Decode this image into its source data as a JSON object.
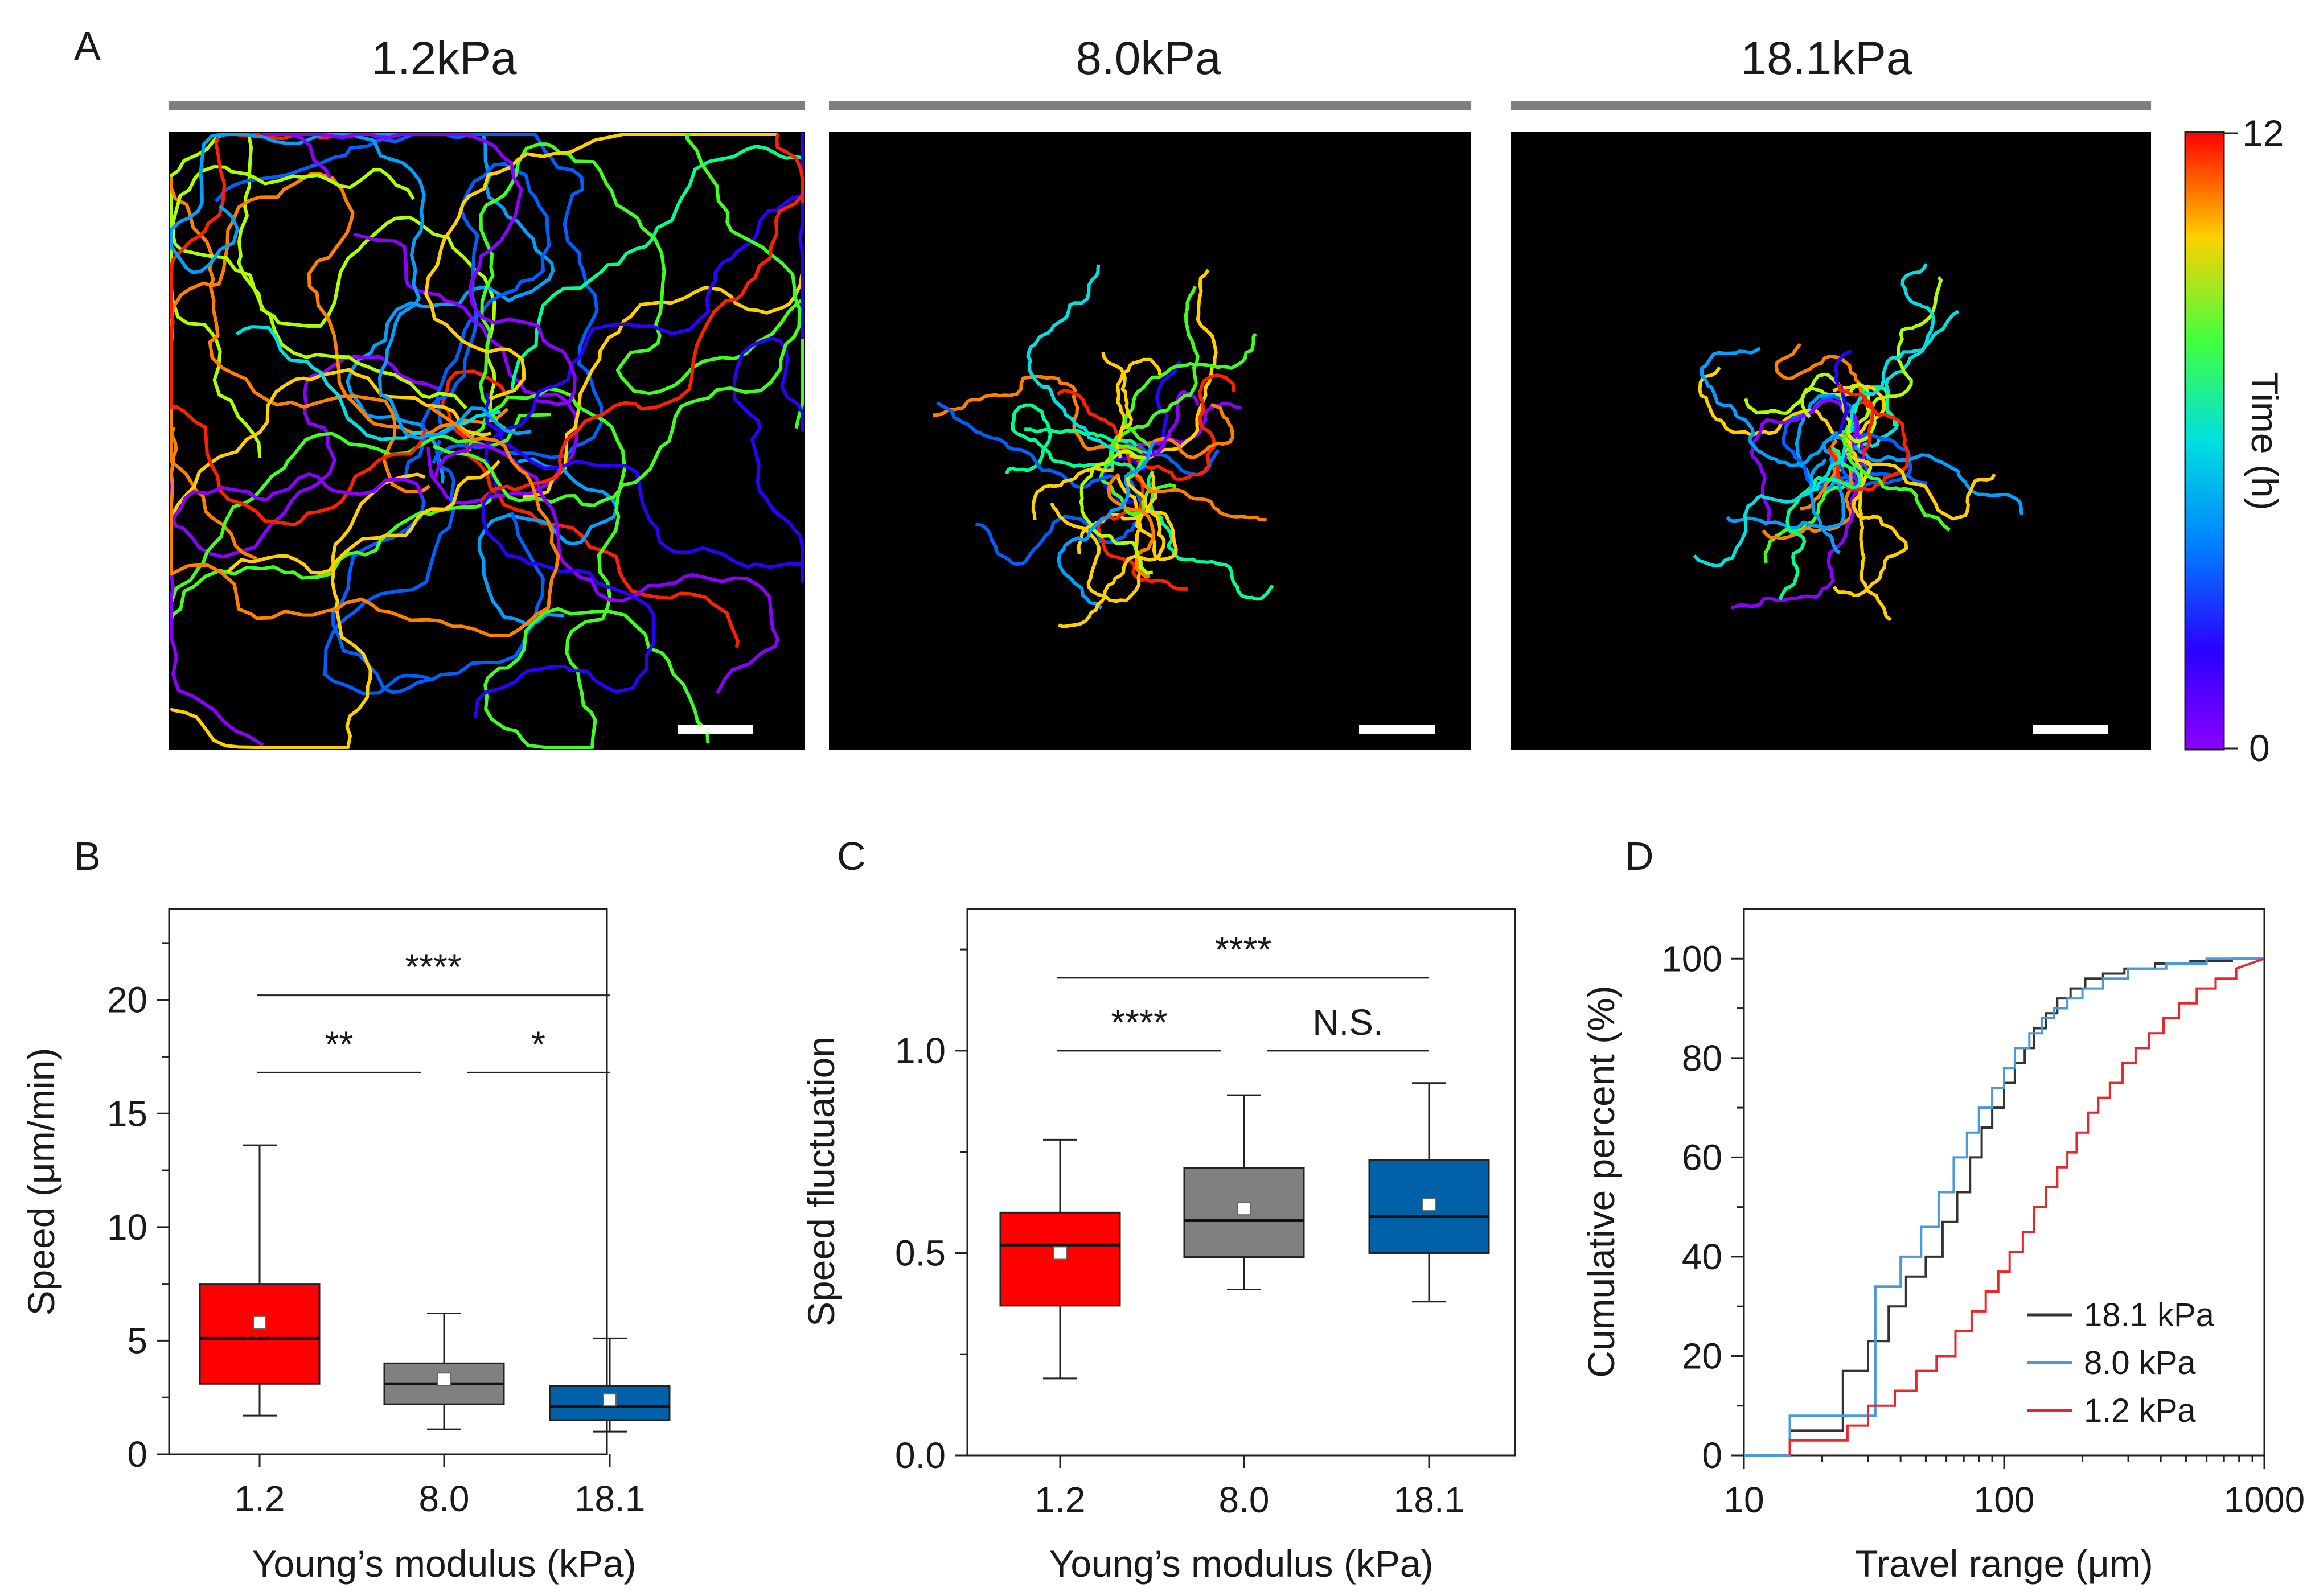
{
  "figure": {
    "panels": {
      "a": "A",
      "b": "B",
      "c": "C",
      "d": "D"
    }
  },
  "panel_a": {
    "conditions": [
      "1.2kPa",
      "8.0kPa",
      "18.1kPa"
    ],
    "colorbar": {
      "max_label": "12",
      "min_label": "0",
      "label": "Time (h)",
      "range": [
        0,
        12
      ]
    },
    "colors": {
      "header_bar": "#7f7f7f",
      "background": "#000000",
      "scale_bar": "#ffffff"
    }
  },
  "chart_data": [
    {
      "id": "B",
      "type": "box",
      "ylabel": "Speed (μm/min)",
      "xlabel": "Young’s modulus (kPa)",
      "ylim": [
        0,
        24
      ],
      "yticks": [
        0,
        5,
        10,
        15,
        20
      ],
      "categories": [
        "1.2",
        "8.0",
        "18.1"
      ],
      "boxes": [
        {
          "category": "1.2",
          "whisker_low": 1.7,
          "q1": 3.1,
          "median": 5.1,
          "q3": 7.5,
          "whisker_high": 13.6,
          "mean": 5.8,
          "color": "#ff0000"
        },
        {
          "category": "8.0",
          "whisker_low": 1.1,
          "q1": 2.2,
          "median": 3.1,
          "q3": 4.0,
          "whisker_high": 6.2,
          "mean": 3.3,
          "color": "#808080"
        },
        {
          "category": "18.1",
          "whisker_low": 1.0,
          "q1": 1.5,
          "median": 2.1,
          "q3": 3.0,
          "whisker_high": 5.1,
          "mean": 2.4,
          "color": "#0060a8"
        }
      ],
      "significance": [
        {
          "from": 0,
          "to": 2,
          "y": 20.2,
          "label": "****"
        },
        {
          "from": 0,
          "to": 1,
          "y": 16.8,
          "label": "**"
        },
        {
          "from": 1,
          "to": 2,
          "y": 16.8,
          "label": "*"
        }
      ]
    },
    {
      "id": "C",
      "type": "box",
      "ylabel": "Speed fluctuation",
      "xlabel": "Young’s modulus (kPa)",
      "ylim": [
        0,
        1.35
      ],
      "yticks": [
        0.0,
        0.5,
        1.0
      ],
      "ytick_labels": [
        "0.0",
        "0.5",
        "1.0"
      ],
      "categories": [
        "1.2",
        "8.0",
        "18.1"
      ],
      "boxes": [
        {
          "category": "1.2",
          "whisker_low": 0.19,
          "q1": 0.37,
          "median": 0.52,
          "q3": 0.6,
          "whisker_high": 0.78,
          "mean": 0.5,
          "color": "#ff0000"
        },
        {
          "category": "8.0",
          "whisker_low": 0.41,
          "q1": 0.49,
          "median": 0.58,
          "q3": 0.71,
          "whisker_high": 0.89,
          "mean": 0.61,
          "color": "#808080"
        },
        {
          "category": "18.1",
          "whisker_low": 0.38,
          "q1": 0.5,
          "median": 0.59,
          "q3": 0.73,
          "whisker_high": 0.92,
          "mean": 0.62,
          "color": "#0060a8"
        }
      ],
      "significance": [
        {
          "from": 0,
          "to": 2,
          "y": 1.18,
          "label": "****"
        },
        {
          "from": 0,
          "to": 1,
          "y": 1.0,
          "label": "****"
        },
        {
          "from": 1,
          "to": 2,
          "y": 1.0,
          "label": "N.S."
        }
      ]
    },
    {
      "id": "D",
      "type": "step",
      "xscale": "log",
      "xlim": [
        10,
        1000
      ],
      "ylim": [
        0,
        110
      ],
      "xticks": [
        10,
        100,
        1000
      ],
      "xtick_labels": [
        "10",
        "100",
        "1000"
      ],
      "yticks": [
        0,
        20,
        40,
        60,
        80,
        100
      ],
      "xlabel": "Travel range (μm)",
      "ylabel": "Cumulative percent (%)",
      "legend_position": "bottom-right",
      "series": [
        {
          "name": "18.1 kPa",
          "color": "#333333",
          "x": [
            15,
            15,
            24,
            24,
            30,
            30,
            36,
            36,
            42,
            42,
            50,
            50,
            58,
            58,
            66,
            66,
            74,
            74,
            82,
            82,
            90,
            90,
            100,
            100,
            110,
            110,
            120,
            120,
            130,
            130,
            145,
            145,
            160,
            160,
            180,
            180,
            205,
            205,
            240,
            240,
            290,
            290,
            380,
            380,
            520,
            520,
            750,
            750,
            1000
          ],
          "y": [
            0,
            5,
            5,
            17,
            17,
            23,
            23,
            30,
            30,
            36,
            36,
            40,
            40,
            47,
            47,
            53,
            53,
            60,
            60,
            66,
            66,
            70,
            70,
            75,
            75,
            79,
            79,
            82,
            82,
            86,
            86,
            89,
            89,
            92,
            92,
            94,
            94,
            96,
            96,
            97,
            97,
            98,
            98,
            99,
            99,
            99.5,
            99.5,
            100,
            100
          ]
        },
        {
          "name": "8.0 kPa",
          "color": "#4a9ad8",
          "x": [
            10,
            15,
            15,
            32,
            32,
            40,
            40,
            48,
            48,
            56,
            56,
            64,
            64,
            72,
            72,
            80,
            80,
            90,
            90,
            100,
            100,
            110,
            110,
            125,
            125,
            140,
            140,
            155,
            155,
            175,
            175,
            200,
            200,
            240,
            240,
            300,
            300,
            420,
            420,
            600,
            600,
            1000
          ],
          "y": [
            0,
            0,
            8,
            8,
            34,
            34,
            40,
            40,
            46,
            46,
            53,
            53,
            60,
            60,
            65,
            65,
            70,
            70,
            74,
            74,
            78,
            78,
            82,
            82,
            85,
            85,
            88,
            88,
            90,
            90,
            92,
            92,
            94,
            94,
            96,
            96,
            98,
            98,
            99,
            99,
            100,
            100
          ]
        },
        {
          "name": "1.2 kPa",
          "color": "#e8262b",
          "x": [
            15,
            15,
            25,
            25,
            30,
            30,
            38,
            38,
            46,
            46,
            55,
            55,
            65,
            65,
            75,
            75,
            85,
            85,
            95,
            95,
            105,
            105,
            118,
            118,
            130,
            130,
            145,
            145,
            160,
            160,
            175,
            175,
            190,
            190,
            210,
            210,
            230,
            230,
            255,
            255,
            285,
            285,
            320,
            320,
            360,
            360,
            410,
            410,
            470,
            470,
            550,
            550,
            650,
            650,
            780,
            780,
            1000
          ],
          "y": [
            0,
            3,
            3,
            6,
            6,
            10,
            10,
            13,
            13,
            17,
            17,
            20,
            20,
            25,
            25,
            29,
            29,
            33,
            33,
            37,
            37,
            41,
            41,
            45,
            45,
            50,
            50,
            54,
            54,
            58,
            58,
            61,
            61,
            65,
            65,
            69,
            69,
            72,
            72,
            75,
            75,
            79,
            79,
            82,
            82,
            85,
            85,
            88,
            88,
            91,
            91,
            94,
            94,
            96,
            96,
            98,
            100
          ]
        }
      ]
    }
  ]
}
